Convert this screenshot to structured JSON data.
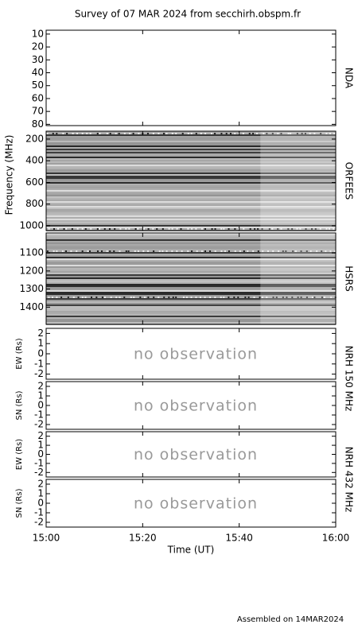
{
  "title": "Survey of 07 MAR 2024 from secchirh.obspm.fr",
  "footer": "Assembled on 14MAR2024",
  "frequency_label": "Frequency (MHz)",
  "nrh_labels": [
    "NRH 150 MHz",
    "NRH 432 MHz"
  ],
  "x_axis": {
    "xlim": [
      0,
      60
    ],
    "xticks": [
      {
        "value": 0,
        "label": "15:00"
      },
      {
        "value": 20,
        "label": "15:20"
      },
      {
        "value": 40,
        "label": "15:40"
      },
      {
        "value": 60,
        "label": "16:00"
      }
    ],
    "xlabel": "Time (UT)"
  },
  "chart_data": [
    {
      "type": "empty",
      "label": "NDA",
      "reversed": true,
      "ylim": [
        7,
        81
      ],
      "yticks": [
        10,
        20,
        30,
        40,
        50,
        60,
        70,
        80
      ]
    },
    {
      "type": "spectrogram",
      "label": "ORFEES",
      "reversed": true,
      "ylim": [
        127,
        1044
      ],
      "yticks": [
        200,
        400,
        600,
        800,
        1000
      ]
    },
    {
      "type": "spectrogram",
      "label": "HSRS",
      "reversed": true,
      "ylim": [
        990,
        1495
      ],
      "yticks": [
        1100,
        1200,
        1300,
        1400
      ]
    },
    {
      "type": "nodata",
      "ylabel": "EW (Rs)",
      "note": "no observation",
      "reversed": false,
      "ylim": [
        -2.5,
        2.5
      ],
      "yticks": [
        -2,
        -1,
        0,
        1,
        2
      ]
    },
    {
      "type": "nodata",
      "ylabel": "SN (Rs)",
      "note": "no observation",
      "reversed": false,
      "ylim": [
        -2.5,
        2.5
      ],
      "yticks": [
        -2,
        -1,
        0,
        1,
        2
      ]
    },
    {
      "type": "nodata",
      "ylabel": "EW (Rs)",
      "note": "no observation",
      "reversed": false,
      "ylim": [
        -2.5,
        2.5
      ],
      "yticks": [
        -2,
        -1,
        0,
        1,
        2
      ]
    },
    {
      "type": "nodata",
      "ylabel": "SN (Rs)",
      "note": "no observation",
      "reversed": false,
      "ylim": [
        -2.5,
        2.5
      ],
      "yticks": [
        -2,
        -1,
        0,
        1,
        2
      ]
    }
  ]
}
